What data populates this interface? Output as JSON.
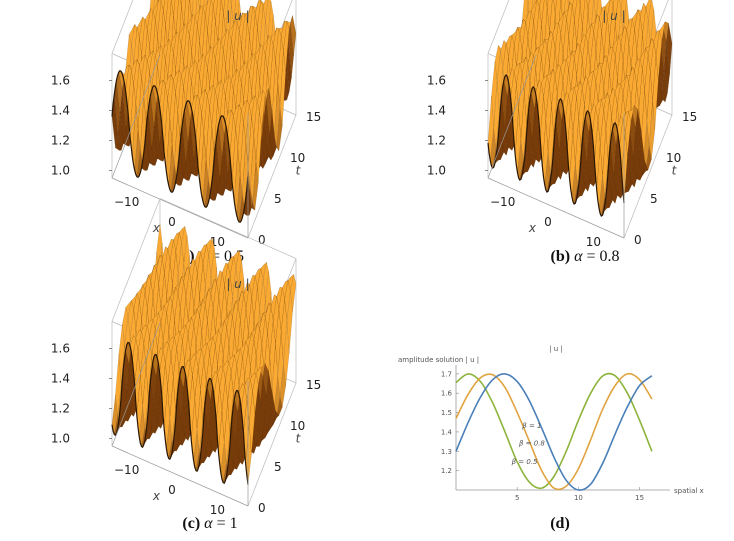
{
  "panels": [
    {
      "id": "a",
      "title": "| u |",
      "caption_label": "(a)",
      "caption_symbol": "α",
      "caption_value": "= 0.5",
      "z_ticks": [
        "1.6",
        "1.4",
        "1.2",
        "1.0"
      ],
      "x_ticks": [
        "−10",
        "0",
        "10"
      ],
      "t_ticks": [
        "0",
        "5",
        "10",
        "15"
      ],
      "x_label": "x",
      "t_label": "t"
    },
    {
      "id": "b",
      "title": "| u |",
      "caption_label": "(b)",
      "caption_symbol": "α",
      "caption_value": "= 0.8",
      "z_ticks": [
        "1.6",
        "1.4",
        "1.2",
        "1.0"
      ],
      "x_ticks": [
        "−10",
        "0",
        "10"
      ],
      "t_ticks": [
        "0",
        "5",
        "10",
        "15"
      ],
      "x_label": "x",
      "t_label": "t"
    },
    {
      "id": "c",
      "title": "| u |",
      "caption_label": "(c)",
      "caption_symbol": "α",
      "caption_value": "= 1",
      "z_ticks": [
        "1.6",
        "1.4",
        "1.2",
        "1.0"
      ],
      "x_ticks": [
        "−10",
        "0",
        "10"
      ],
      "t_ticks": [
        "0",
        "5",
        "10",
        "15"
      ],
      "x_label": "x",
      "t_label": "t"
    }
  ],
  "panel_d": {
    "caption_label": "(d)",
    "title": "| u |",
    "ylabel": "amplitude solution | u |",
    "xlabel": "spatial x"
  },
  "chart_data": [
    {
      "type": "surface",
      "panel": "a",
      "title": "| u |",
      "xlabel": "x",
      "ylabel": "t",
      "zlabel": "",
      "xlim": [
        -15,
        15
      ],
      "ylim": [
        0,
        15
      ],
      "zlim": [
        0.95,
        1.75
      ],
      "x_ticks": [
        -10,
        0,
        10
      ],
      "y_ticks": [
        0,
        5,
        10,
        15
      ],
      "z_ticks": [
        1.0,
        1.2,
        1.4,
        1.6
      ],
      "alpha": 0.5,
      "ridges": 4
    },
    {
      "type": "surface",
      "panel": "b",
      "title": "| u |",
      "xlabel": "x",
      "ylabel": "t",
      "zlabel": "",
      "xlim": [
        -15,
        15
      ],
      "ylim": [
        0,
        15
      ],
      "zlim": [
        0.95,
        1.75
      ],
      "x_ticks": [
        -10,
        0,
        10
      ],
      "y_ticks": [
        0,
        5,
        10,
        15
      ],
      "z_ticks": [
        1.0,
        1.2,
        1.4,
        1.6
      ],
      "alpha": 0.8,
      "ridges": 5
    },
    {
      "type": "surface",
      "panel": "c",
      "title": "| u |",
      "xlabel": "x",
      "ylabel": "t",
      "zlabel": "",
      "xlim": [
        -15,
        15
      ],
      "ylim": [
        0,
        15
      ],
      "zlim": [
        0.95,
        1.75
      ],
      "x_ticks": [
        -10,
        0,
        10
      ],
      "y_ticks": [
        0,
        5,
        10,
        15
      ],
      "z_ticks": [
        1.0,
        1.2,
        1.4,
        1.6
      ],
      "alpha": 1,
      "ridges": 5
    },
    {
      "type": "line",
      "panel": "d",
      "title": "| u |",
      "xlabel": "spatial x",
      "ylabel": "amplitude solution | u |",
      "xlim": [
        0,
        16.5
      ],
      "ylim": [
        1.1,
        1.72
      ],
      "x_ticks": [
        5,
        10,
        15
      ],
      "y_ticks": [
        1.2,
        1.3,
        1.4,
        1.5,
        1.6,
        1.7
      ],
      "series": [
        {
          "name": "β = 1",
          "color": "#8db43c",
          "x": [
            0,
            1,
            2,
            3,
            4,
            5,
            6,
            7,
            8,
            9,
            10,
            11,
            12,
            13,
            14,
            15,
            16
          ],
          "y": [
            1.655,
            1.7,
            1.66,
            1.55,
            1.4,
            1.245,
            1.14,
            1.11,
            1.17,
            1.3,
            1.46,
            1.6,
            1.69,
            1.69,
            1.6,
            1.46,
            1.3
          ]
        },
        {
          "name": "β = 0.8",
          "color": "#e0a441",
          "x": [
            0,
            1,
            2,
            3,
            4,
            5,
            6,
            7,
            8,
            9,
            10,
            11,
            12,
            13,
            14,
            15,
            16
          ],
          "y": [
            1.47,
            1.595,
            1.68,
            1.695,
            1.63,
            1.5,
            1.35,
            1.2,
            1.11,
            1.12,
            1.21,
            1.36,
            1.52,
            1.64,
            1.7,
            1.67,
            1.57
          ]
        },
        {
          "name": "β = 0.5",
          "color": "#4a7fb8",
          "x": [
            0,
            1,
            2,
            3,
            4,
            5,
            6,
            7,
            8,
            9,
            10,
            11,
            12,
            13,
            14,
            15,
            16
          ],
          "y": [
            1.3,
            1.45,
            1.58,
            1.67,
            1.7,
            1.66,
            1.56,
            1.42,
            1.27,
            1.15,
            1.1,
            1.13,
            1.24,
            1.39,
            1.53,
            1.64,
            1.69
          ]
        }
      ],
      "annotations": [
        "β = 1",
        "β = 0.8",
        "β = 0.5"
      ]
    }
  ]
}
